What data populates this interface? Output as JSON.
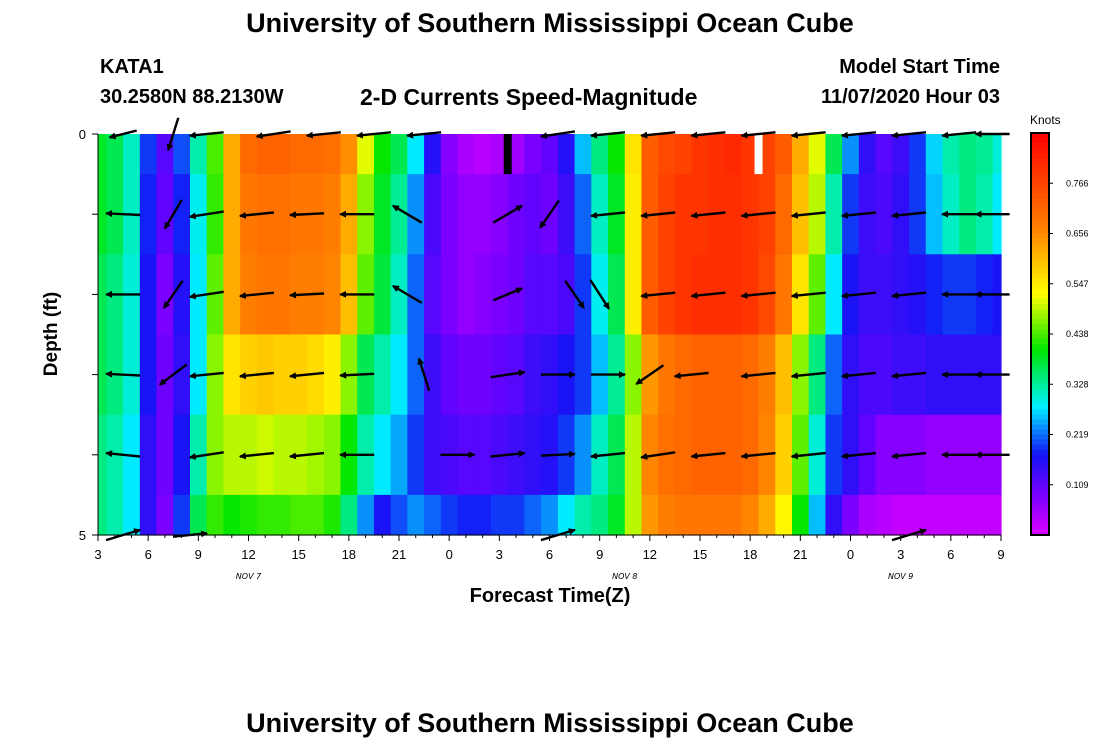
{
  "page": {
    "title_top": "University of Southern Mississippi Ocean Cube",
    "title_bottom": "University of Southern Mississippi Ocean Cube",
    "station_id": "KATA1",
    "station_coords": "30.2580N 88.2130W",
    "chart_title": "2-D Currents Speed-Magnitude",
    "model_label": "Model Start Time",
    "model_time": "11/07/2020 Hour 03"
  },
  "chart_data": {
    "type": "heatmap",
    "title": "2-D Currents Speed-Magnitude",
    "xlabel": "Forecast Time(Z)",
    "ylabel": "Depth (ft)",
    "units": "Knots",
    "x_ticks": [
      "3",
      "6",
      "9",
      "12",
      "15",
      "18",
      "21",
      "0",
      "3",
      "6",
      "9",
      "12",
      "15",
      "18",
      "21",
      "0",
      "3",
      "6",
      "9"
    ],
    "date_labels": [
      {
        "label": "NOV 7",
        "tick": 3
      },
      {
        "label": "NOV 8",
        "tick": 10.5
      },
      {
        "label": "NOV 9",
        "tick": 16
      }
    ],
    "y_ticks": [
      "0",
      "",
      "",
      "",
      "",
      "5"
    ],
    "ylim": [
      0,
      5
    ],
    "colorbar": {
      "labels": [
        "0.766",
        "0.656",
        "0.547",
        "0.438",
        "0.328",
        "0.219",
        "0.109"
      ],
      "min": 0.04,
      "max": 0.86
    },
    "depth_levels": [
      "0-0.5",
      "0.5-1.5",
      "1.5-2.5",
      "2.5-3.5",
      "3.5-4.5",
      "4.5-5"
    ],
    "hours": [
      3,
      4,
      5,
      6,
      7,
      8,
      9,
      10,
      11,
      12,
      13,
      14,
      15,
      16,
      17,
      18,
      19,
      20,
      21,
      22,
      23,
      24,
      25,
      26,
      27,
      28,
      29,
      30,
      31,
      32,
      33,
      34,
      35,
      36,
      37,
      38,
      39,
      40,
      41,
      42,
      43,
      44,
      45,
      46,
      47,
      48,
      49,
      50,
      51,
      52,
      53,
      54,
      55,
      56,
      57
    ],
    "speed": [
      [
        0.4,
        0.38,
        0.33,
        0.22,
        0.15,
        0.23,
        0.34,
        0.45,
        0.62,
        0.7,
        0.71,
        0.71,
        0.7,
        0.7,
        0.69,
        0.65,
        0.52,
        0.42,
        0.38,
        0.3,
        0.19,
        0.11,
        0.08,
        0.07,
        0.08,
        0.09,
        0.12,
        0.14,
        0.19,
        0.28,
        0.36,
        0.42,
        0.56,
        0.72,
        0.75,
        0.76,
        0.78,
        0.79,
        0.8,
        0.78,
        0.76,
        0.72,
        0.62,
        0.52,
        0.38,
        0.26,
        0.18,
        0.15,
        0.17,
        0.22,
        0.29,
        0.34,
        0.36,
        0.35,
        0.32
      ],
      [
        0.4,
        0.38,
        0.33,
        0.21,
        0.14,
        0.21,
        0.31,
        0.44,
        0.62,
        0.68,
        0.69,
        0.69,
        0.68,
        0.68,
        0.67,
        0.62,
        0.48,
        0.4,
        0.35,
        0.26,
        0.16,
        0.12,
        0.1,
        0.1,
        0.11,
        0.13,
        0.14,
        0.13,
        0.17,
        0.24,
        0.33,
        0.4,
        0.55,
        0.72,
        0.76,
        0.78,
        0.78,
        0.79,
        0.79,
        0.78,
        0.76,
        0.7,
        0.6,
        0.5,
        0.34,
        0.22,
        0.17,
        0.16,
        0.18,
        0.22,
        0.28,
        0.33,
        0.36,
        0.34,
        0.3
      ],
      [
        0.38,
        0.36,
        0.32,
        0.2,
        0.12,
        0.19,
        0.3,
        0.46,
        0.62,
        0.67,
        0.68,
        0.68,
        0.67,
        0.67,
        0.66,
        0.6,
        0.46,
        0.39,
        0.33,
        0.24,
        0.15,
        0.12,
        0.1,
        0.11,
        0.12,
        0.13,
        0.15,
        0.15,
        0.16,
        0.22,
        0.31,
        0.38,
        0.55,
        0.72,
        0.76,
        0.78,
        0.79,
        0.79,
        0.79,
        0.78,
        0.75,
        0.68,
        0.56,
        0.46,
        0.3,
        0.2,
        0.17,
        0.17,
        0.18,
        0.19,
        0.21,
        0.22,
        0.22,
        0.21,
        0.2
      ],
      [
        0.38,
        0.36,
        0.32,
        0.2,
        0.13,
        0.18,
        0.3,
        0.48,
        0.56,
        0.58,
        0.59,
        0.58,
        0.58,
        0.57,
        0.55,
        0.48,
        0.38,
        0.34,
        0.3,
        0.24,
        0.17,
        0.14,
        0.13,
        0.13,
        0.14,
        0.15,
        0.17,
        0.18,
        0.2,
        0.22,
        0.28,
        0.35,
        0.48,
        0.64,
        0.68,
        0.7,
        0.71,
        0.71,
        0.71,
        0.7,
        0.67,
        0.6,
        0.48,
        0.36,
        0.24,
        0.18,
        0.16,
        0.16,
        0.17,
        0.17,
        0.18,
        0.18,
        0.18,
        0.18,
        0.18
      ],
      [
        0.36,
        0.34,
        0.3,
        0.18,
        0.13,
        0.2,
        0.34,
        0.48,
        0.5,
        0.5,
        0.51,
        0.5,
        0.5,
        0.49,
        0.48,
        0.42,
        0.34,
        0.3,
        0.27,
        0.22,
        0.17,
        0.16,
        0.15,
        0.15,
        0.16,
        0.17,
        0.18,
        0.19,
        0.22,
        0.26,
        0.33,
        0.38,
        0.5,
        0.66,
        0.69,
        0.7,
        0.71,
        0.71,
        0.71,
        0.7,
        0.66,
        0.58,
        0.46,
        0.32,
        0.22,
        0.18,
        0.14,
        0.11,
        0.11,
        0.11,
        0.1,
        0.1,
        0.1,
        0.1,
        0.1
      ],
      [
        0.36,
        0.34,
        0.3,
        0.18,
        0.12,
        0.22,
        0.38,
        0.44,
        0.42,
        0.43,
        0.44,
        0.44,
        0.45,
        0.45,
        0.43,
        0.36,
        0.26,
        0.2,
        0.23,
        0.26,
        0.24,
        0.22,
        0.21,
        0.21,
        0.22,
        0.22,
        0.24,
        0.26,
        0.3,
        0.34,
        0.36,
        0.4,
        0.5,
        0.64,
        0.67,
        0.68,
        0.68,
        0.68,
        0.68,
        0.66,
        0.62,
        0.54,
        0.42,
        0.28,
        0.18,
        0.12,
        0.08,
        0.07,
        0.06,
        0.06,
        0.06,
        0.06,
        0.06,
        0.06,
        0.06
      ]
    ],
    "missing": [
      {
        "hour": 27.5,
        "depth_from": 0,
        "depth_to": 0.5,
        "color": "#000000"
      },
      {
        "hour": 42.5,
        "depth_from": 0,
        "depth_to": 0.5,
        "color": "#ffffff"
      }
    ],
    "vector_depths": [
      0,
      1,
      2,
      3,
      4,
      5
    ],
    "vectors": [
      [
        {
          "hour": 4.5,
          "u": -0.8,
          "v": -0.2
        },
        {
          "hour": 7.5,
          "u": -0.3,
          "v": -0.95
        },
        {
          "hour": 9.5,
          "u": -1.0,
          "v": -0.1
        },
        {
          "hour": 13.5,
          "u": -1.0,
          "v": -0.15
        },
        {
          "hour": 16.5,
          "u": -1.0,
          "v": -0.1
        },
        {
          "hour": 19.5,
          "u": -1.0,
          "v": -0.1
        },
        {
          "hour": 22.5,
          "u": -1.0,
          "v": -0.1
        },
        {
          "hour": 30.5,
          "u": -1.0,
          "v": -0.15
        },
        {
          "hour": 33.5,
          "u": -1.0,
          "v": -0.1
        },
        {
          "hour": 36.5,
          "u": -1.0,
          "v": -0.1
        },
        {
          "hour": 39.5,
          "u": -1.0,
          "v": -0.1
        },
        {
          "hour": 42.5,
          "u": -1.0,
          "v": -0.1
        },
        {
          "hour": 45.5,
          "u": -1.0,
          "v": -0.1
        },
        {
          "hour": 48.5,
          "u": -1.0,
          "v": -0.1
        },
        {
          "hour": 51.5,
          "u": -1.0,
          "v": -0.1
        },
        {
          "hour": 54.5,
          "u": -1.0,
          "v": -0.1
        },
        {
          "hour": 56.5,
          "u": -1.0,
          "v": 0.0
        }
      ],
      [
        {
          "hour": 4.5,
          "u": -1.0,
          "v": 0.05
        },
        {
          "hour": 7.5,
          "u": -0.5,
          "v": -0.85
        },
        {
          "hour": 9.5,
          "u": -1.0,
          "v": -0.15
        },
        {
          "hour": 12.5,
          "u": -1.0,
          "v": -0.1
        },
        {
          "hour": 15.5,
          "u": -1.0,
          "v": -0.05
        },
        {
          "hour": 18.5,
          "u": -1.0,
          "v": 0.0
        },
        {
          "hour": 21.5,
          "u": -0.85,
          "v": 0.5
        },
        {
          "hour": 27.5,
          "u": 0.85,
          "v": 0.5
        },
        {
          "hour": 30,
          "u": -0.55,
          "v": -0.8
        },
        {
          "hour": 33.5,
          "u": -1.0,
          "v": -0.1
        },
        {
          "hour": 36.5,
          "u": -1.0,
          "v": -0.1
        },
        {
          "hour": 39.5,
          "u": -1.0,
          "v": -0.1
        },
        {
          "hour": 42.5,
          "u": -1.0,
          "v": -0.1
        },
        {
          "hour": 45.5,
          "u": -1.0,
          "v": -0.1
        },
        {
          "hour": 48.5,
          "u": -1.0,
          "v": -0.1
        },
        {
          "hour": 51.5,
          "u": -1.0,
          "v": -0.1
        },
        {
          "hour": 54.5,
          "u": -1.0,
          "v": 0.0
        },
        {
          "hour": 56.5,
          "u": -1.0,
          "v": 0.0
        }
      ],
      [
        {
          "hour": 4.5,
          "u": -1.0,
          "v": 0.0
        },
        {
          "hour": 7.5,
          "u": -0.55,
          "v": -0.8
        },
        {
          "hour": 9.5,
          "u": -1.0,
          "v": -0.15
        },
        {
          "hour": 12.5,
          "u": -1.0,
          "v": -0.1
        },
        {
          "hour": 15.5,
          "u": -1.0,
          "v": -0.05
        },
        {
          "hour": 18.5,
          "u": -1.0,
          "v": 0.0
        },
        {
          "hour": 21.5,
          "u": -0.85,
          "v": 0.5
        },
        {
          "hour": 27.5,
          "u": 0.85,
          "v": 0.35
        },
        {
          "hour": 31.5,
          "u": 0.55,
          "v": -0.8
        },
        {
          "hour": 33,
          "u": 0.55,
          "v": -0.85
        },
        {
          "hour": 36.5,
          "u": -1.0,
          "v": -0.1
        },
        {
          "hour": 39.5,
          "u": -1.0,
          "v": -0.1
        },
        {
          "hour": 42.5,
          "u": -1.0,
          "v": -0.1
        },
        {
          "hour": 45.5,
          "u": -1.0,
          "v": -0.1
        },
        {
          "hour": 48.5,
          "u": -1.0,
          "v": -0.1
        },
        {
          "hour": 51.5,
          "u": -1.0,
          "v": -0.1
        },
        {
          "hour": 54.5,
          "u": -1.0,
          "v": 0.0
        },
        {
          "hour": 56.5,
          "u": -1.0,
          "v": 0.0
        }
      ],
      [
        {
          "hour": 4.5,
          "u": -1.0,
          "v": 0.05
        },
        {
          "hour": 7.5,
          "u": -0.8,
          "v": -0.6
        },
        {
          "hour": 9.5,
          "u": -1.0,
          "v": -0.1
        },
        {
          "hour": 12.5,
          "u": -1.0,
          "v": -0.1
        },
        {
          "hour": 15.5,
          "u": -1.0,
          "v": -0.1
        },
        {
          "hour": 18.5,
          "u": -1.0,
          "v": -0.05
        },
        {
          "hour": 22.5,
          "u": -0.3,
          "v": 0.95
        },
        {
          "hour": 27.5,
          "u": 1.0,
          "v": 0.15
        },
        {
          "hour": 30.5,
          "u": 1.0,
          "v": 0.0
        },
        {
          "hour": 33.5,
          "u": 1.0,
          "v": 0.0
        },
        {
          "hour": 36,
          "u": -0.8,
          "v": -0.55
        },
        {
          "hour": 38.5,
          "u": -1.0,
          "v": -0.1
        },
        {
          "hour": 42.5,
          "u": -1.0,
          "v": -0.1
        },
        {
          "hour": 45.5,
          "u": -1.0,
          "v": -0.1
        },
        {
          "hour": 48.5,
          "u": -1.0,
          "v": -0.1
        },
        {
          "hour": 51.5,
          "u": -1.0,
          "v": -0.1
        },
        {
          "hour": 54.5,
          "u": -1.0,
          "v": 0.0
        },
        {
          "hour": 56.5,
          "u": -1.0,
          "v": 0.0
        }
      ],
      [
        {
          "hour": 4.5,
          "u": -1.0,
          "v": 0.1
        },
        {
          "hour": 9.5,
          "u": -1.0,
          "v": -0.15
        },
        {
          "hour": 12.5,
          "u": -1.0,
          "v": -0.1
        },
        {
          "hour": 15.5,
          "u": -1.0,
          "v": -0.1
        },
        {
          "hour": 18.5,
          "u": -1.0,
          "v": 0.0
        },
        {
          "hour": 24.5,
          "u": 1.0,
          "v": 0.0
        },
        {
          "hour": 27.5,
          "u": 1.0,
          "v": 0.1
        },
        {
          "hour": 30.5,
          "u": 1.0,
          "v": 0.05
        },
        {
          "hour": 33.5,
          "u": -1.0,
          "v": -0.1
        },
        {
          "hour": 36.5,
          "u": -1.0,
          "v": -0.15
        },
        {
          "hour": 39.5,
          "u": -1.0,
          "v": -0.1
        },
        {
          "hour": 42.5,
          "u": -1.0,
          "v": -0.1
        },
        {
          "hour": 45.5,
          "u": -1.0,
          "v": -0.1
        },
        {
          "hour": 48.5,
          "u": -1.0,
          "v": -0.1
        },
        {
          "hour": 51.5,
          "u": -1.0,
          "v": -0.1
        },
        {
          "hour": 54.5,
          "u": -1.0,
          "v": 0.0
        },
        {
          "hour": 56.5,
          "u": -1.0,
          "v": 0.0
        }
      ],
      [
        {
          "hour": 4.5,
          "u": 1.0,
          "v": 0.3
        },
        {
          "hour": 8.5,
          "u": 1.0,
          "v": 0.1
        },
        {
          "hour": 30.5,
          "u": 1.0,
          "v": 0.3
        },
        {
          "hour": 51.5,
          "u": 1.0,
          "v": 0.3
        }
      ]
    ]
  }
}
